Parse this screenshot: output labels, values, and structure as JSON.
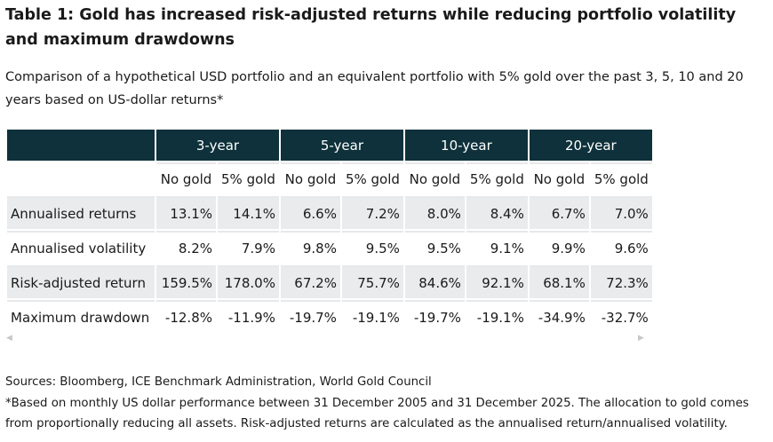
{
  "title": "Table 1: Gold has increased risk-adjusted returns while reducing portfolio volatility and maximum drawdowns",
  "subtitle": "Comparison of a hypothetical USD portfolio and an equivalent portfolio with 5% gold over the past 3, 5, 10 and 20 years based on US-dollar returns*",
  "table": {
    "groups": [
      "3-year",
      "5-year",
      "10-year",
      "20-year"
    ],
    "subheaders": [
      "No gold",
      "5% gold",
      "No gold",
      "5% gold",
      "No gold",
      "5% gold",
      "No gold",
      "5% gold"
    ],
    "rows": [
      {
        "label": "Annualised returns",
        "values": [
          "13.1%",
          "14.1%",
          "6.6%",
          "7.2%",
          "8.0%",
          "8.4%",
          "6.7%",
          "7.0%"
        ]
      },
      {
        "label": "Annualised volatility",
        "values": [
          "8.2%",
          "7.9%",
          "9.8%",
          "9.5%",
          "9.5%",
          "9.1%",
          "9.9%",
          "9.6%"
        ]
      },
      {
        "label": "Risk-adjusted return",
        "values": [
          "159.5%",
          "178.0%",
          "67.2%",
          "75.7%",
          "84.6%",
          "92.1%",
          "68.1%",
          "72.3%"
        ]
      },
      {
        "label": "Maximum drawdown",
        "values": [
          "-12.8%",
          "-11.9%",
          "-19.7%",
          "-19.1%",
          "-19.7%",
          "-19.1%",
          "-34.9%",
          "-32.7%"
        ]
      }
    ]
  },
  "footer": {
    "sources": "Sources: Bloomberg, ICE Benchmark Administration, World Gold Council",
    "note": "*Based on monthly US dollar performance between 31 December 2005 and 31 December 2025. The allocation to gold comes from proportionally reducing all assets. Risk-adjusted returns are calculated as the annualised return/annualised volatility."
  },
  "colors": {
    "header_bg": "#0e313b",
    "shade": "#e9ebec"
  }
}
